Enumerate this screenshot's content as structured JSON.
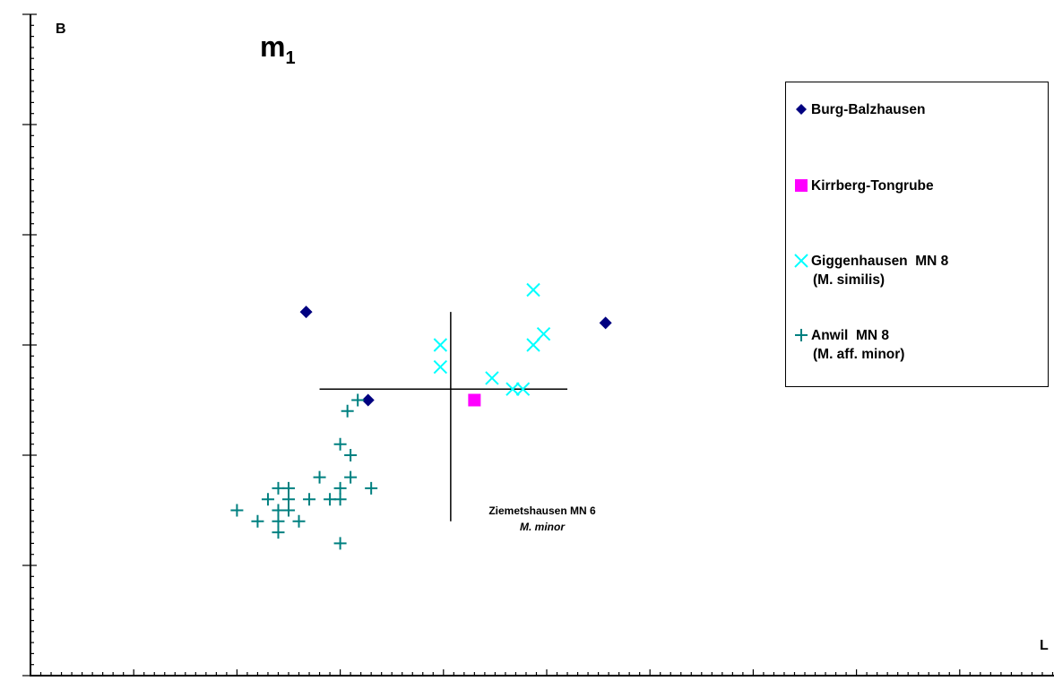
{
  "chart_data": {
    "type": "scatter",
    "title": "m",
    "title_subscript": "1",
    "panel_label": "B",
    "xlabel": "L",
    "ylabel": "",
    "xlim": [
      0,
      10
    ],
    "ylim": [
      0,
      6
    ],
    "grid": false,
    "legend_position": "right",
    "series": [
      {
        "name": "Burg-Balzhausen",
        "marker": "diamond",
        "color": "#000080",
        "points": [
          [
            2.67,
            3.3
          ],
          [
            3.27,
            2.5
          ],
          [
            5.57,
            3.2
          ]
        ]
      },
      {
        "name": "Kirrberg-Tongrube",
        "marker": "square",
        "color": "#ff00ff",
        "points": [
          [
            4.3,
            2.5
          ]
        ]
      },
      {
        "name": "Giggenhausen  MN 8",
        "name_line2": "(M. similis)",
        "marker": "x",
        "color": "#00ffff",
        "points": [
          [
            4.97,
            3.1
          ],
          [
            3.97,
            3.0
          ],
          [
            3.97,
            2.8
          ],
          [
            4.47,
            2.7
          ],
          [
            4.67,
            2.6
          ],
          [
            4.77,
            2.6
          ],
          [
            4.87,
            3.5
          ],
          [
            4.87,
            3.0
          ]
        ]
      },
      {
        "name": "Anwil  MN 8",
        "name_line2": "(M. aff. minor)",
        "marker": "plus",
        "color": "#008080",
        "points": [
          [
            3.17,
            2.5
          ],
          [
            3.07,
            2.4
          ],
          [
            3.0,
            2.1
          ],
          [
            3.1,
            2.0
          ],
          [
            2.8,
            1.8
          ],
          [
            3.1,
            1.8
          ],
          [
            3.3,
            1.7
          ],
          [
            3.0,
            1.7
          ],
          [
            2.4,
            1.7
          ],
          [
            2.5,
            1.7
          ],
          [
            2.3,
            1.6
          ],
          [
            2.5,
            1.6
          ],
          [
            2.7,
            1.6
          ],
          [
            2.9,
            1.6
          ],
          [
            3.0,
            1.6
          ],
          [
            2.0,
            1.5
          ],
          [
            2.4,
            1.5
          ],
          [
            2.5,
            1.5
          ],
          [
            2.2,
            1.4
          ],
          [
            2.4,
            1.4
          ],
          [
            2.6,
            1.4
          ],
          [
            2.4,
            1.3
          ],
          [
            3.0,
            1.2
          ]
        ]
      }
    ],
    "reference_cross": {
      "x_range": [
        2.8,
        5.2
      ],
      "y": 2.6,
      "x": 4.07,
      "y_range": [
        1.4,
        3.3
      ],
      "label_line1": "Ziemetshausen  MN 6",
      "label_line2": "M. minor"
    },
    "colors": {
      "axis": "#000000",
      "background": "#ffffff"
    }
  }
}
